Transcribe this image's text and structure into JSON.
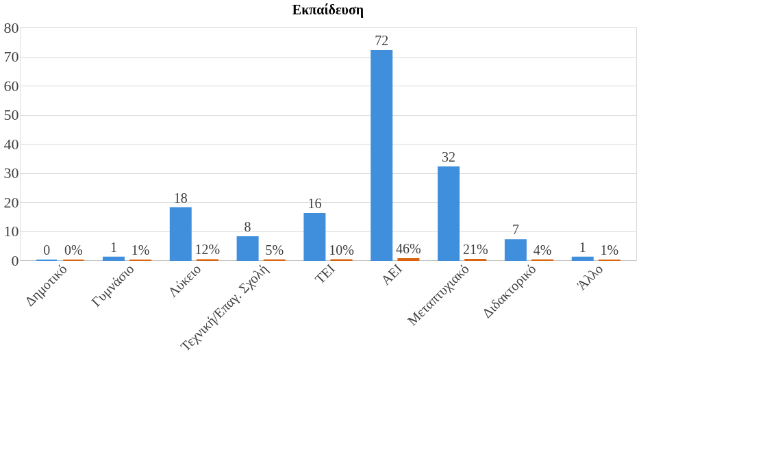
{
  "chart_data": {
    "type": "bar",
    "title": "Εκπαίδευση",
    "categories": [
      "Δημοτικό",
      "Γυμνάσιο",
      "Λύκειο",
      "Τεχνική/Επαγ. Σχολή",
      "ΤΕΙ",
      "ΑΕΙ",
      "Μεταπτυχιακό",
      "Διδακτορικό",
      "Άλλο"
    ],
    "series": [
      {
        "color": "#3f8fdc",
        "values": [
          0,
          1,
          18,
          8,
          16,
          72,
          32,
          7,
          1
        ]
      },
      {
        "color": "#d9640f",
        "values": [
          0,
          0.01,
          0.12,
          0.05,
          0.1,
          0.46,
          0.21,
          0.04,
          0.01
        ],
        "value_labels": [
          "0%",
          "1%",
          "12%",
          "5%",
          "10%",
          "46%",
          "21%",
          "4%",
          "1%"
        ]
      }
    ],
    "ylim": [
      0,
      80
    ],
    "yticks": [
      0,
      10,
      20,
      30,
      40,
      50,
      60,
      70,
      80
    ],
    "grid": "y",
    "data_labels": true
  }
}
